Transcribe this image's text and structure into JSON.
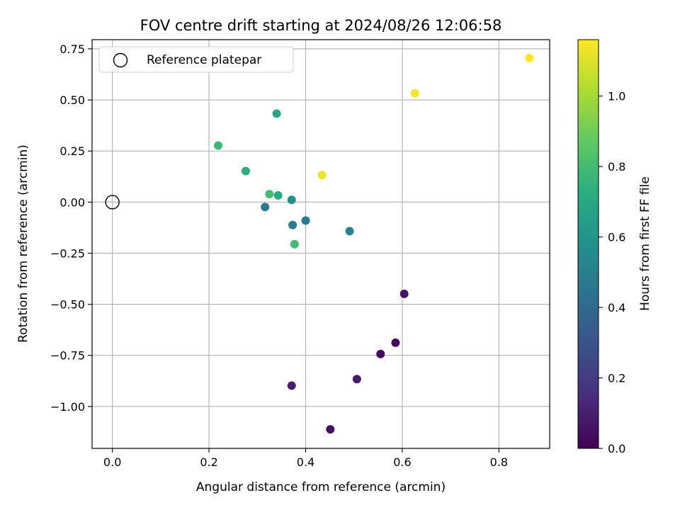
{
  "chart_data": {
    "type": "scatter",
    "title": "FOV centre drift starting at 2024/08/26 12:06:58",
    "xlabel": "Angular distance from reference (arcmin)",
    "ylabel": "Rotation from reference (arcmin)",
    "xlim": [
      -0.042,
      0.905
    ],
    "ylim": [
      -1.205,
      0.795
    ],
    "xticks": [
      "0.0",
      "0.2",
      "0.4",
      "0.6",
      "0.8"
    ],
    "xtick_values": [
      0,
      0.2,
      0.4,
      0.6,
      0.8
    ],
    "yticks": [
      "0.75",
      "0.50",
      "0.25",
      "0.00",
      "−0.25",
      "−0.50",
      "−0.75",
      "−1.00"
    ],
    "ytick_values": [
      0.75,
      0.5,
      0.25,
      0,
      -0.25,
      -0.5,
      -0.75,
      -1.0
    ],
    "grid": true,
    "legend": {
      "position": "top-left",
      "entries": [
        "Reference platepar"
      ]
    },
    "reference_point": {
      "x": 0.0,
      "y": 0.0
    },
    "colorbar": {
      "label": "Hours from first FF file",
      "colormap": "viridis",
      "range": [
        0.0,
        1.16
      ],
      "ticks": [
        "0.0",
        "0.2",
        "0.4",
        "0.6",
        "0.8",
        "1.0"
      ],
      "tick_values": [
        0,
        0.2,
        0.4,
        0.6,
        0.8,
        1.0
      ]
    },
    "points": [
      {
        "x": 0.863,
        "y": 0.705,
        "hours": 1.16
      },
      {
        "x": 0.626,
        "y": 0.533,
        "hours": 1.15
      },
      {
        "x": 0.434,
        "y": 0.132,
        "hours": 1.13
      },
      {
        "x": 0.34,
        "y": 0.433,
        "hours": 0.68
      },
      {
        "x": 0.219,
        "y": 0.277,
        "hours": 0.78
      },
      {
        "x": 0.276,
        "y": 0.152,
        "hours": 0.72
      },
      {
        "x": 0.325,
        "y": 0.039,
        "hours": 0.8
      },
      {
        "x": 0.343,
        "y": 0.033,
        "hours": 0.7
      },
      {
        "x": 0.371,
        "y": 0.011,
        "hours": 0.58
      },
      {
        "x": 0.316,
        "y": -0.024,
        "hours": 0.47
      },
      {
        "x": 0.373,
        "y": -0.112,
        "hours": 0.5
      },
      {
        "x": 0.4,
        "y": -0.09,
        "hours": 0.47
      },
      {
        "x": 0.491,
        "y": -0.142,
        "hours": 0.52
      },
      {
        "x": 0.377,
        "y": -0.206,
        "hours": 0.8
      },
      {
        "x": 0.604,
        "y": -0.449,
        "hours": 0.07
      },
      {
        "x": 0.586,
        "y": -0.688,
        "hours": 0.02
      },
      {
        "x": 0.555,
        "y": -0.743,
        "hours": 0.03
      },
      {
        "x": 0.506,
        "y": -0.866,
        "hours": 0.08
      },
      {
        "x": 0.371,
        "y": -0.898,
        "hours": 0.1
      },
      {
        "x": 0.451,
        "y": -1.112,
        "hours": 0.05
      }
    ]
  }
}
